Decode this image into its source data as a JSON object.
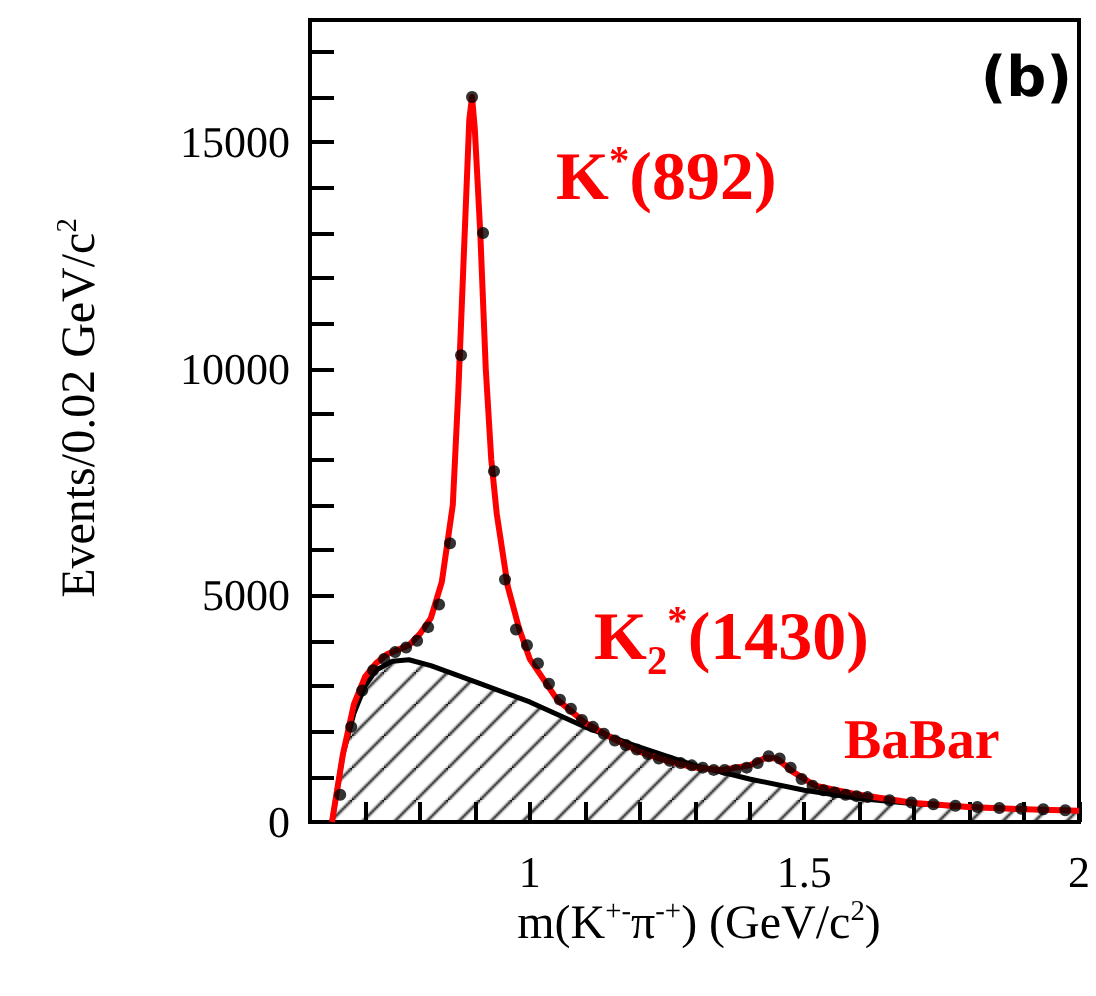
{
  "chart_data": {
    "type": "line",
    "xlabel": "m(K$^{+-}$π$^{-+}$) (GeV/c$^{2}$)",
    "ylabel": "Events/0.02 GeV/c$^{2}$",
    "annotations": [
      "(b)",
      "K$^{*}$(892)",
      "K$_{2}$$^{*}$(1430)",
      "BaBar"
    ],
    "xlim": [
      0.6,
      2.0
    ],
    "ylim": [
      0,
      17700
    ],
    "xticks": [
      {
        "value": 0.7,
        "label": null
      },
      {
        "value": 0.8,
        "label": null
      },
      {
        "value": 0.9,
        "label": null
      },
      1,
      {
        "value": 1.1,
        "label": null
      },
      {
        "value": 1.2,
        "label": null
      },
      {
        "value": 1.3,
        "label": null
      },
      {
        "value": 1.4,
        "label": null
      },
      1.5,
      {
        "value": 1.6,
        "label": null
      },
      {
        "value": 1.7,
        "label": null
      },
      {
        "value": 1.8,
        "label": null
      },
      {
        "value": 1.9,
        "label": null
      },
      2
    ],
    "yticks": [
      0,
      {
        "value": 1000,
        "label": null
      },
      {
        "value": 2000,
        "label": null
      },
      {
        "value": 3000,
        "label": null
      },
      {
        "value": 4000,
        "label": null
      },
      5000,
      {
        "value": 6000,
        "label": null
      },
      {
        "value": 7000,
        "label": null
      },
      {
        "value": 8000,
        "label": null
      },
      {
        "value": 9000,
        "label": null
      },
      10000,
      {
        "value": 11000,
        "label": null
      },
      {
        "value": 12000,
        "label": null
      },
      {
        "value": 13000,
        "label": null
      },
      {
        "value": 14000,
        "label": null
      },
      15000,
      {
        "value": 16000,
        "label": null
      },
      {
        "value": 17000,
        "label": null
      }
    ],
    "grid": false,
    "series": [
      {
        "type": "area",
        "color": "#000000",
        "x": [
          0.64,
          0.66,
          0.68,
          0.7,
          0.72,
          0.75,
          0.78,
          0.82,
          0.9,
          1.0,
          1.1,
          1.2,
          1.3,
          1.4,
          1.5,
          1.6,
          1.7,
          1.8,
          1.9,
          2.0
        ],
        "values": [
          0,
          1500,
          2400,
          3000,
          3350,
          3550,
          3580,
          3450,
          3100,
          2650,
          2100,
          1650,
          1250,
          950,
          700,
          520,
          400,
          330,
          280,
          250
        ]
      },
      {
        "color": "#ff0000",
        "x": [
          0.64,
          0.66,
          0.68,
          0.7,
          0.72,
          0.74,
          0.76,
          0.78,
          0.8,
          0.82,
          0.84,
          0.86,
          0.87,
          0.88,
          0.89,
          0.895,
          0.9,
          0.91,
          0.92,
          0.93,
          0.94,
          0.96,
          0.98,
          1.0,
          1.05,
          1.1,
          1.15,
          1.2,
          1.25,
          1.3,
          1.35,
          1.4,
          1.43,
          1.45,
          1.48,
          1.52,
          1.6,
          1.7,
          1.8,
          1.9,
          2.0
        ],
        "values": [
          0,
          1500,
          2600,
          3200,
          3500,
          3700,
          3800,
          3900,
          4150,
          4500,
          5300,
          7000,
          9500,
          12500,
          15500,
          16000,
          15300,
          13000,
          10000,
          8000,
          6800,
          5200,
          4300,
          3600,
          2700,
          2200,
          1850,
          1550,
          1350,
          1200,
          1150,
          1250,
          1420,
          1400,
          1100,
          800,
          600,
          420,
          330,
          280,
          250
        ]
      },
      {
        "type": "scatter",
        "color": "#000000",
        "marker": "circle",
        "x": [
          0.655,
          0.675,
          0.695,
          0.715,
          0.735,
          0.755,
          0.775,
          0.795,
          0.815,
          0.835,
          0.855,
          0.875,
          0.895,
          0.915,
          0.935,
          0.955,
          0.975,
          0.995,
          1.015,
          1.035,
          1.055,
          1.075,
          1.095,
          1.115,
          1.135,
          1.155,
          1.175,
          1.195,
          1.215,
          1.235,
          1.255,
          1.275,
          1.295,
          1.315,
          1.335,
          1.355,
          1.375,
          1.395,
          1.415,
          1.435,
          1.455,
          1.475,
          1.495,
          1.515,
          1.535,
          1.555,
          1.575,
          1.595,
          1.615,
          1.655,
          1.695,
          1.735,
          1.775,
          1.815,
          1.855,
          1.895,
          1.935,
          1.975
        ],
        "values": [
          600,
          2100,
          2900,
          3350,
          3600,
          3750,
          3850,
          4000,
          4300,
          4800,
          6150,
          10300,
          16000,
          13000,
          7740,
          5350,
          4250,
          3900,
          3500,
          3050,
          2700,
          2500,
          2250,
          2100,
          1950,
          1800,
          1700,
          1600,
          1500,
          1400,
          1350,
          1300,
          1250,
          1200,
          1150,
          1150,
          1150,
          1200,
          1300,
          1450,
          1400,
          1200,
          950,
          800,
          700,
          650,
          600,
          570,
          550,
          480,
          430,
          390,
          360,
          330,
          310,
          290,
          280,
          260
        ]
      }
    ]
  }
}
